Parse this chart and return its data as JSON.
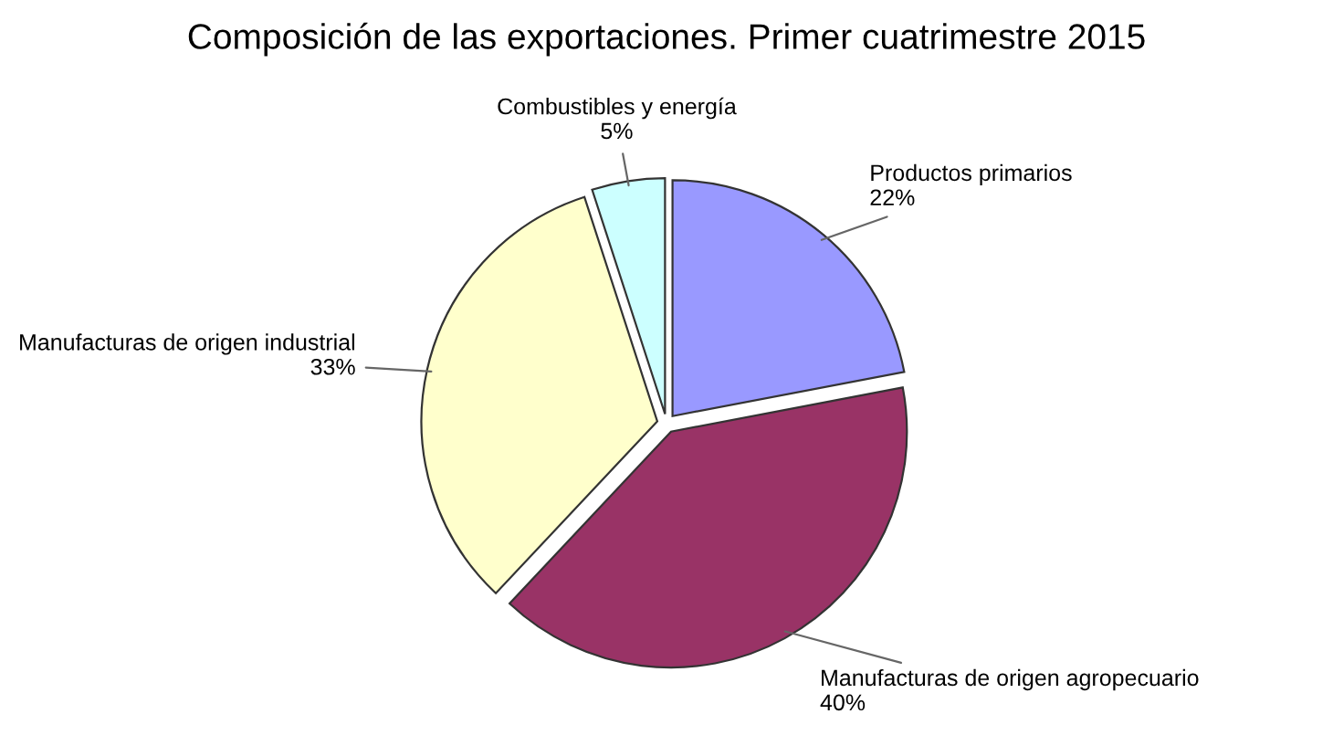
{
  "chart_data": {
    "type": "pie",
    "title": "Composición de las exportaciones. Primer cuatrimestre 2015",
    "categories": [
      "Productos primarios",
      "Manufacturas de origen agropecuario",
      "Manufacturas de origen industrial",
      "Combustibles y energía"
    ],
    "values": [
      22,
      40,
      33,
      5
    ],
    "value_labels": [
      "22%",
      "40%",
      "33%",
      "5%"
    ],
    "colors": [
      "#9999ff",
      "#993366",
      "#ffffcc",
      "#ccffff"
    ]
  }
}
